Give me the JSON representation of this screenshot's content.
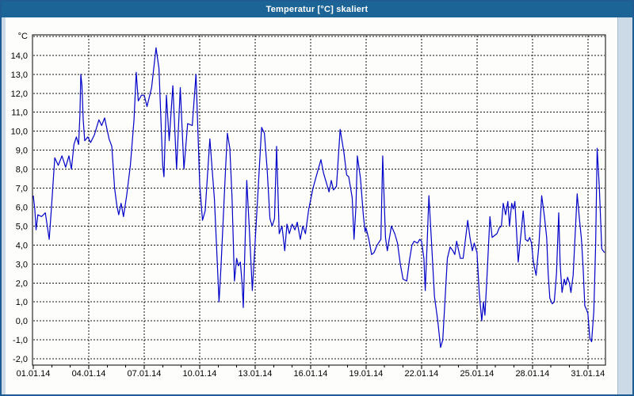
{
  "window": {
    "title": "Temperatur [°C] skaliert"
  },
  "colors": {
    "titlebar_bg": "#1d6496",
    "titlebar_text": "#ffffff",
    "outer_border": "#1f5c94",
    "margin_strip": "#ccdae8",
    "plot_bg": "#fdfdfc",
    "grid": "#151515",
    "frame": "#000000",
    "line": "#0000c8"
  },
  "chart_data": {
    "type": "line",
    "title": "Temperatur [°C] skaliert",
    "xlabel": "",
    "ylabel": "°C",
    "y_unit_label": "°C",
    "grid": true,
    "legend": "none",
    "x_range_days": [
      0,
      30.95
    ],
    "y_range": [
      -2.33,
      15.08
    ],
    "y_ticks": [
      {
        "value": 14,
        "label": "14,0"
      },
      {
        "value": 13,
        "label": "13,0"
      },
      {
        "value": 12,
        "label": "12,0"
      },
      {
        "value": 11,
        "label": "11,0"
      },
      {
        "value": 10,
        "label": "10,0"
      },
      {
        "value": 9,
        "label": "9,0"
      },
      {
        "value": 8,
        "label": "8,0"
      },
      {
        "value": 7,
        "label": "7,0"
      },
      {
        "value": 6,
        "label": "6,0"
      },
      {
        "value": 5,
        "label": "5,0"
      },
      {
        "value": 4,
        "label": "4,0"
      },
      {
        "value": 3,
        "label": "3,0"
      },
      {
        "value": 2,
        "label": "2,0"
      },
      {
        "value": 1,
        "label": "1,0"
      },
      {
        "value": 0,
        "label": "0,0"
      },
      {
        "value": -1,
        "label": "-1,0"
      },
      {
        "value": -2,
        "label": "-2,0"
      }
    ],
    "x_ticks": [
      {
        "day": 0,
        "label": "01.01.14"
      },
      {
        "day": 3,
        "label": "04.01.14"
      },
      {
        "day": 6,
        "label": "07.01.14"
      },
      {
        "day": 9,
        "label": "10.01.14"
      },
      {
        "day": 12,
        "label": "13.01.14"
      },
      {
        "day": 15,
        "label": "16.01.14"
      },
      {
        "day": 18,
        "label": "19.01.14"
      },
      {
        "day": 21,
        "label": "22.01.14"
      },
      {
        "day": 24,
        "label": "25.01.14"
      },
      {
        "day": 27,
        "label": "28.01.14"
      },
      {
        "day": 30,
        "label": "31.01.14"
      }
    ],
    "series_name": "Temperatur",
    "points": [
      [
        0.0,
        6.6
      ],
      [
        0.08,
        5.9
      ],
      [
        0.15,
        4.8
      ],
      [
        0.25,
        5.6
      ],
      [
        0.45,
        5.5
      ],
      [
        0.65,
        5.7
      ],
      [
        0.86,
        4.3
      ],
      [
        1.0,
        6.2
      ],
      [
        1.16,
        8.6
      ],
      [
        1.35,
        8.2
      ],
      [
        1.55,
        8.7
      ],
      [
        1.75,
        8.1
      ],
      [
        1.93,
        8.7
      ],
      [
        2.06,
        8.0
      ],
      [
        2.2,
        9.3
      ],
      [
        2.33,
        9.7
      ],
      [
        2.45,
        9.3
      ],
      [
        2.52,
        10.8
      ],
      [
        2.57,
        13.0
      ],
      [
        2.63,
        12.4
      ],
      [
        2.7,
        10.6
      ],
      [
        2.78,
        9.5
      ],
      [
        2.95,
        9.7
      ],
      [
        3.1,
        9.4
      ],
      [
        3.3,
        9.8
      ],
      [
        3.55,
        10.6
      ],
      [
        3.7,
        10.3
      ],
      [
        3.86,
        10.7
      ],
      [
        4.1,
        9.6
      ],
      [
        4.25,
        9.2
      ],
      [
        4.4,
        7.0
      ],
      [
        4.52,
        6.1
      ],
      [
        4.62,
        5.6
      ],
      [
        4.75,
        6.2
      ],
      [
        4.88,
        5.5
      ],
      [
        5.05,
        6.6
      ],
      [
        5.25,
        8.2
      ],
      [
        5.45,
        10.6
      ],
      [
        5.57,
        13.1
      ],
      [
        5.68,
        11.6
      ],
      [
        5.85,
        11.9
      ],
      [
        6.0,
        11.9
      ],
      [
        6.15,
        11.3
      ],
      [
        6.4,
        12.3
      ],
      [
        6.64,
        14.4
      ],
      [
        6.8,
        13.3
      ],
      [
        7.0,
        8.2
      ],
      [
        7.07,
        7.6
      ],
      [
        7.2,
        11.9
      ],
      [
        7.35,
        9.5
      ],
      [
        7.55,
        12.4
      ],
      [
        7.75,
        8.0
      ],
      [
        7.95,
        12.3
      ],
      [
        8.15,
        8.0
      ],
      [
        8.35,
        10.4
      ],
      [
        8.6,
        10.3
      ],
      [
        8.8,
        13.0
      ],
      [
        9.0,
        7.2
      ],
      [
        9.15,
        5.3
      ],
      [
        9.3,
        5.8
      ],
      [
        9.55,
        9.6
      ],
      [
        9.8,
        6.4
      ],
      [
        10.05,
        1.0
      ],
      [
        10.15,
        2.8
      ],
      [
        10.4,
        8.0
      ],
      [
        10.5,
        9.9
      ],
      [
        10.63,
        9.1
      ],
      [
        10.75,
        6.5
      ],
      [
        10.88,
        2.1
      ],
      [
        11.0,
        3.3
      ],
      [
        11.1,
        2.9
      ],
      [
        11.2,
        3.1
      ],
      [
        11.3,
        1.9
      ],
      [
        11.36,
        0.7
      ],
      [
        11.55,
        7.4
      ],
      [
        11.7,
        4.6
      ],
      [
        11.85,
        1.6
      ],
      [
        12.05,
        5.0
      ],
      [
        12.35,
        10.2
      ],
      [
        12.5,
        9.9
      ],
      [
        12.65,
        8.0
      ],
      [
        12.8,
        5.4
      ],
      [
        12.92,
        5.0
      ],
      [
        13.05,
        5.4
      ],
      [
        13.16,
        9.2
      ],
      [
        13.3,
        4.6
      ],
      [
        13.45,
        5.0
      ],
      [
        13.6,
        3.7
      ],
      [
        13.72,
        5.1
      ],
      [
        13.85,
        4.6
      ],
      [
        14.0,
        5.1
      ],
      [
        14.15,
        4.8
      ],
      [
        14.28,
        5.2
      ],
      [
        14.44,
        4.3
      ],
      [
        14.58,
        5.0
      ],
      [
        14.72,
        4.6
      ],
      [
        14.9,
        5.9
      ],
      [
        15.13,
        7.0
      ],
      [
        15.3,
        7.6
      ],
      [
        15.56,
        8.5
      ],
      [
        15.7,
        7.8
      ],
      [
        15.85,
        7.3
      ],
      [
        16.0,
        6.8
      ],
      [
        16.12,
        7.4
      ],
      [
        16.24,
        6.9
      ],
      [
        16.4,
        7.1
      ],
      [
        16.6,
        10.1
      ],
      [
        16.8,
        8.9
      ],
      [
        16.95,
        7.7
      ],
      [
        17.06,
        7.6
      ],
      [
        17.25,
        6.5
      ],
      [
        17.35,
        4.3
      ],
      [
        17.45,
        6.0
      ],
      [
        17.53,
        8.7
      ],
      [
        17.7,
        7.5
      ],
      [
        17.85,
        5.6
      ],
      [
        17.95,
        4.7
      ],
      [
        18.0,
        4.9
      ],
      [
        18.15,
        4.3
      ],
      [
        18.3,
        3.5
      ],
      [
        18.43,
        3.6
      ],
      [
        18.6,
        4.0
      ],
      [
        18.8,
        4.3
      ],
      [
        18.9,
        8.7
      ],
      [
        19.05,
        4.4
      ],
      [
        19.15,
        3.7
      ],
      [
        19.37,
        5.0
      ],
      [
        19.55,
        4.6
      ],
      [
        19.7,
        4.1
      ],
      [
        19.85,
        3.0
      ],
      [
        20.0,
        2.2
      ],
      [
        20.2,
        2.1
      ],
      [
        20.35,
        3.2
      ],
      [
        20.48,
        4.0
      ],
      [
        20.6,
        4.2
      ],
      [
        20.78,
        4.1
      ],
      [
        20.9,
        4.3
      ],
      [
        21.0,
        4.2
      ],
      [
        21.13,
        3.3
      ],
      [
        21.2,
        1.6
      ],
      [
        21.3,
        4.0
      ],
      [
        21.4,
        6.6
      ],
      [
        21.55,
        4.0
      ],
      [
        21.7,
        1.3
      ],
      [
        21.88,
        0.0
      ],
      [
        22.03,
        -1.4
      ],
      [
        22.15,
        -1.0
      ],
      [
        22.4,
        3.3
      ],
      [
        22.55,
        3.9
      ],
      [
        22.7,
        3.7
      ],
      [
        22.8,
        3.5
      ],
      [
        22.9,
        4.2
      ],
      [
        23.1,
        3.3
      ],
      [
        23.25,
        3.3
      ],
      [
        23.4,
        4.5
      ],
      [
        23.5,
        5.3
      ],
      [
        23.62,
        4.4
      ],
      [
        23.75,
        3.7
      ],
      [
        23.85,
        4.1
      ],
      [
        24.0,
        3.6
      ],
      [
        24.12,
        1.5
      ],
      [
        24.26,
        0.0
      ],
      [
        24.35,
        1.0
      ],
      [
        24.43,
        0.3
      ],
      [
        24.55,
        2.5
      ],
      [
        24.7,
        5.5
      ],
      [
        24.82,
        4.4
      ],
      [
        24.95,
        4.5
      ],
      [
        25.08,
        4.6
      ],
      [
        25.2,
        4.9
      ],
      [
        25.32,
        5.0
      ],
      [
        25.42,
        6.2
      ],
      [
        25.55,
        5.6
      ],
      [
        25.67,
        6.3
      ],
      [
        25.76,
        5.0
      ],
      [
        25.88,
        6.2
      ],
      [
        25.97,
        5.9
      ],
      [
        26.05,
        6.3
      ],
      [
        26.23,
        3.1
      ],
      [
        26.37,
        4.5
      ],
      [
        26.5,
        5.8
      ],
      [
        26.62,
        4.3
      ],
      [
        26.75,
        4.2
      ],
      [
        26.85,
        4.4
      ],
      [
        26.95,
        4.1
      ],
      [
        27.05,
        3.1
      ],
      [
        27.2,
        2.4
      ],
      [
        27.35,
        4.0
      ],
      [
        27.5,
        6.6
      ],
      [
        27.65,
        5.5
      ],
      [
        27.77,
        4.4
      ],
      [
        27.85,
        2.5
      ],
      [
        27.94,
        1.2
      ],
      [
        28.07,
        0.9
      ],
      [
        28.18,
        1.0
      ],
      [
        28.3,
        2.5
      ],
      [
        28.42,
        5.7
      ],
      [
        28.5,
        3.0
      ],
      [
        28.6,
        1.5
      ],
      [
        28.72,
        2.2
      ],
      [
        28.8,
        1.9
      ],
      [
        28.9,
        2.3
      ],
      [
        29.0,
        2.0
      ],
      [
        29.08,
        1.5
      ],
      [
        29.2,
        2.4
      ],
      [
        29.42,
        6.7
      ],
      [
        29.55,
        5.3
      ],
      [
        29.65,
        4.3
      ],
      [
        29.74,
        2.8
      ],
      [
        29.83,
        0.8
      ],
      [
        29.92,
        0.6
      ],
      [
        30.0,
        0.4
      ],
      [
        30.1,
        -0.9
      ],
      [
        30.2,
        -1.1
      ],
      [
        30.32,
        0.5
      ],
      [
        30.42,
        4.0
      ],
      [
        30.5,
        9.1
      ],
      [
        30.62,
        7.0
      ],
      [
        30.75,
        3.8
      ],
      [
        30.9,
        3.6
      ]
    ]
  }
}
